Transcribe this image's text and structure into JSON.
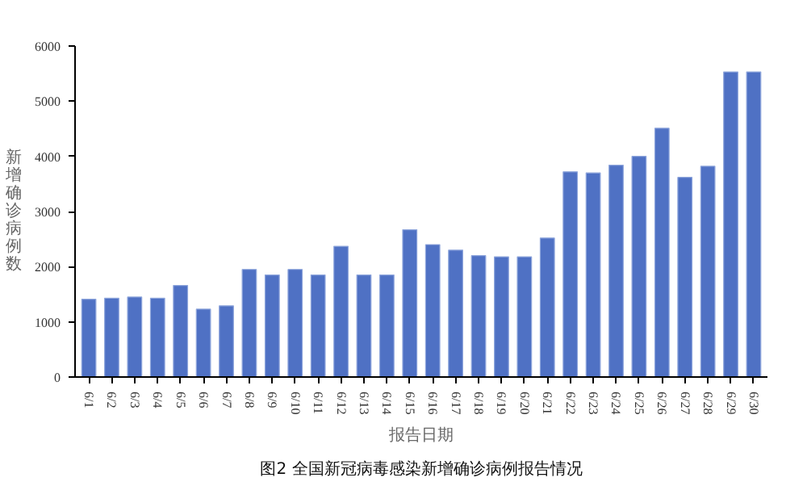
{
  "chart_data": {
    "type": "bar",
    "title": "图2 全国新冠病毒感染新增确诊病例报告情况",
    "xlabel": "报告日期",
    "ylabel": "新增确诊病例数",
    "categories": [
      "6/1",
      "6/2",
      "6/3",
      "6/4",
      "6/5",
      "6/6",
      "6/7",
      "6/8",
      "6/9",
      "6/10",
      "6/11",
      "6/12",
      "6/13",
      "6/14",
      "6/15",
      "6/16",
      "6/17",
      "6/18",
      "6/19",
      "6/20",
      "6/21",
      "6/22",
      "6/23",
      "6/24",
      "6/25",
      "6/26",
      "6/27",
      "6/28",
      "6/29",
      "6/30"
    ],
    "values": [
      1410,
      1430,
      1450,
      1430,
      1660,
      1230,
      1290,
      1950,
      1850,
      1950,
      1850,
      2370,
      1850,
      1850,
      2670,
      2400,
      2300,
      2200,
      2180,
      2180,
      2520,
      3720,
      3700,
      3840,
      4000,
      4510,
      3620,
      3820,
      5530,
      5530
    ],
    "color": "#4f71c4",
    "ylim": [
      0,
      6000
    ],
    "yticks": [
      0,
      1000,
      2000,
      3000,
      4000,
      5000,
      6000
    ],
    "grid": false
  }
}
